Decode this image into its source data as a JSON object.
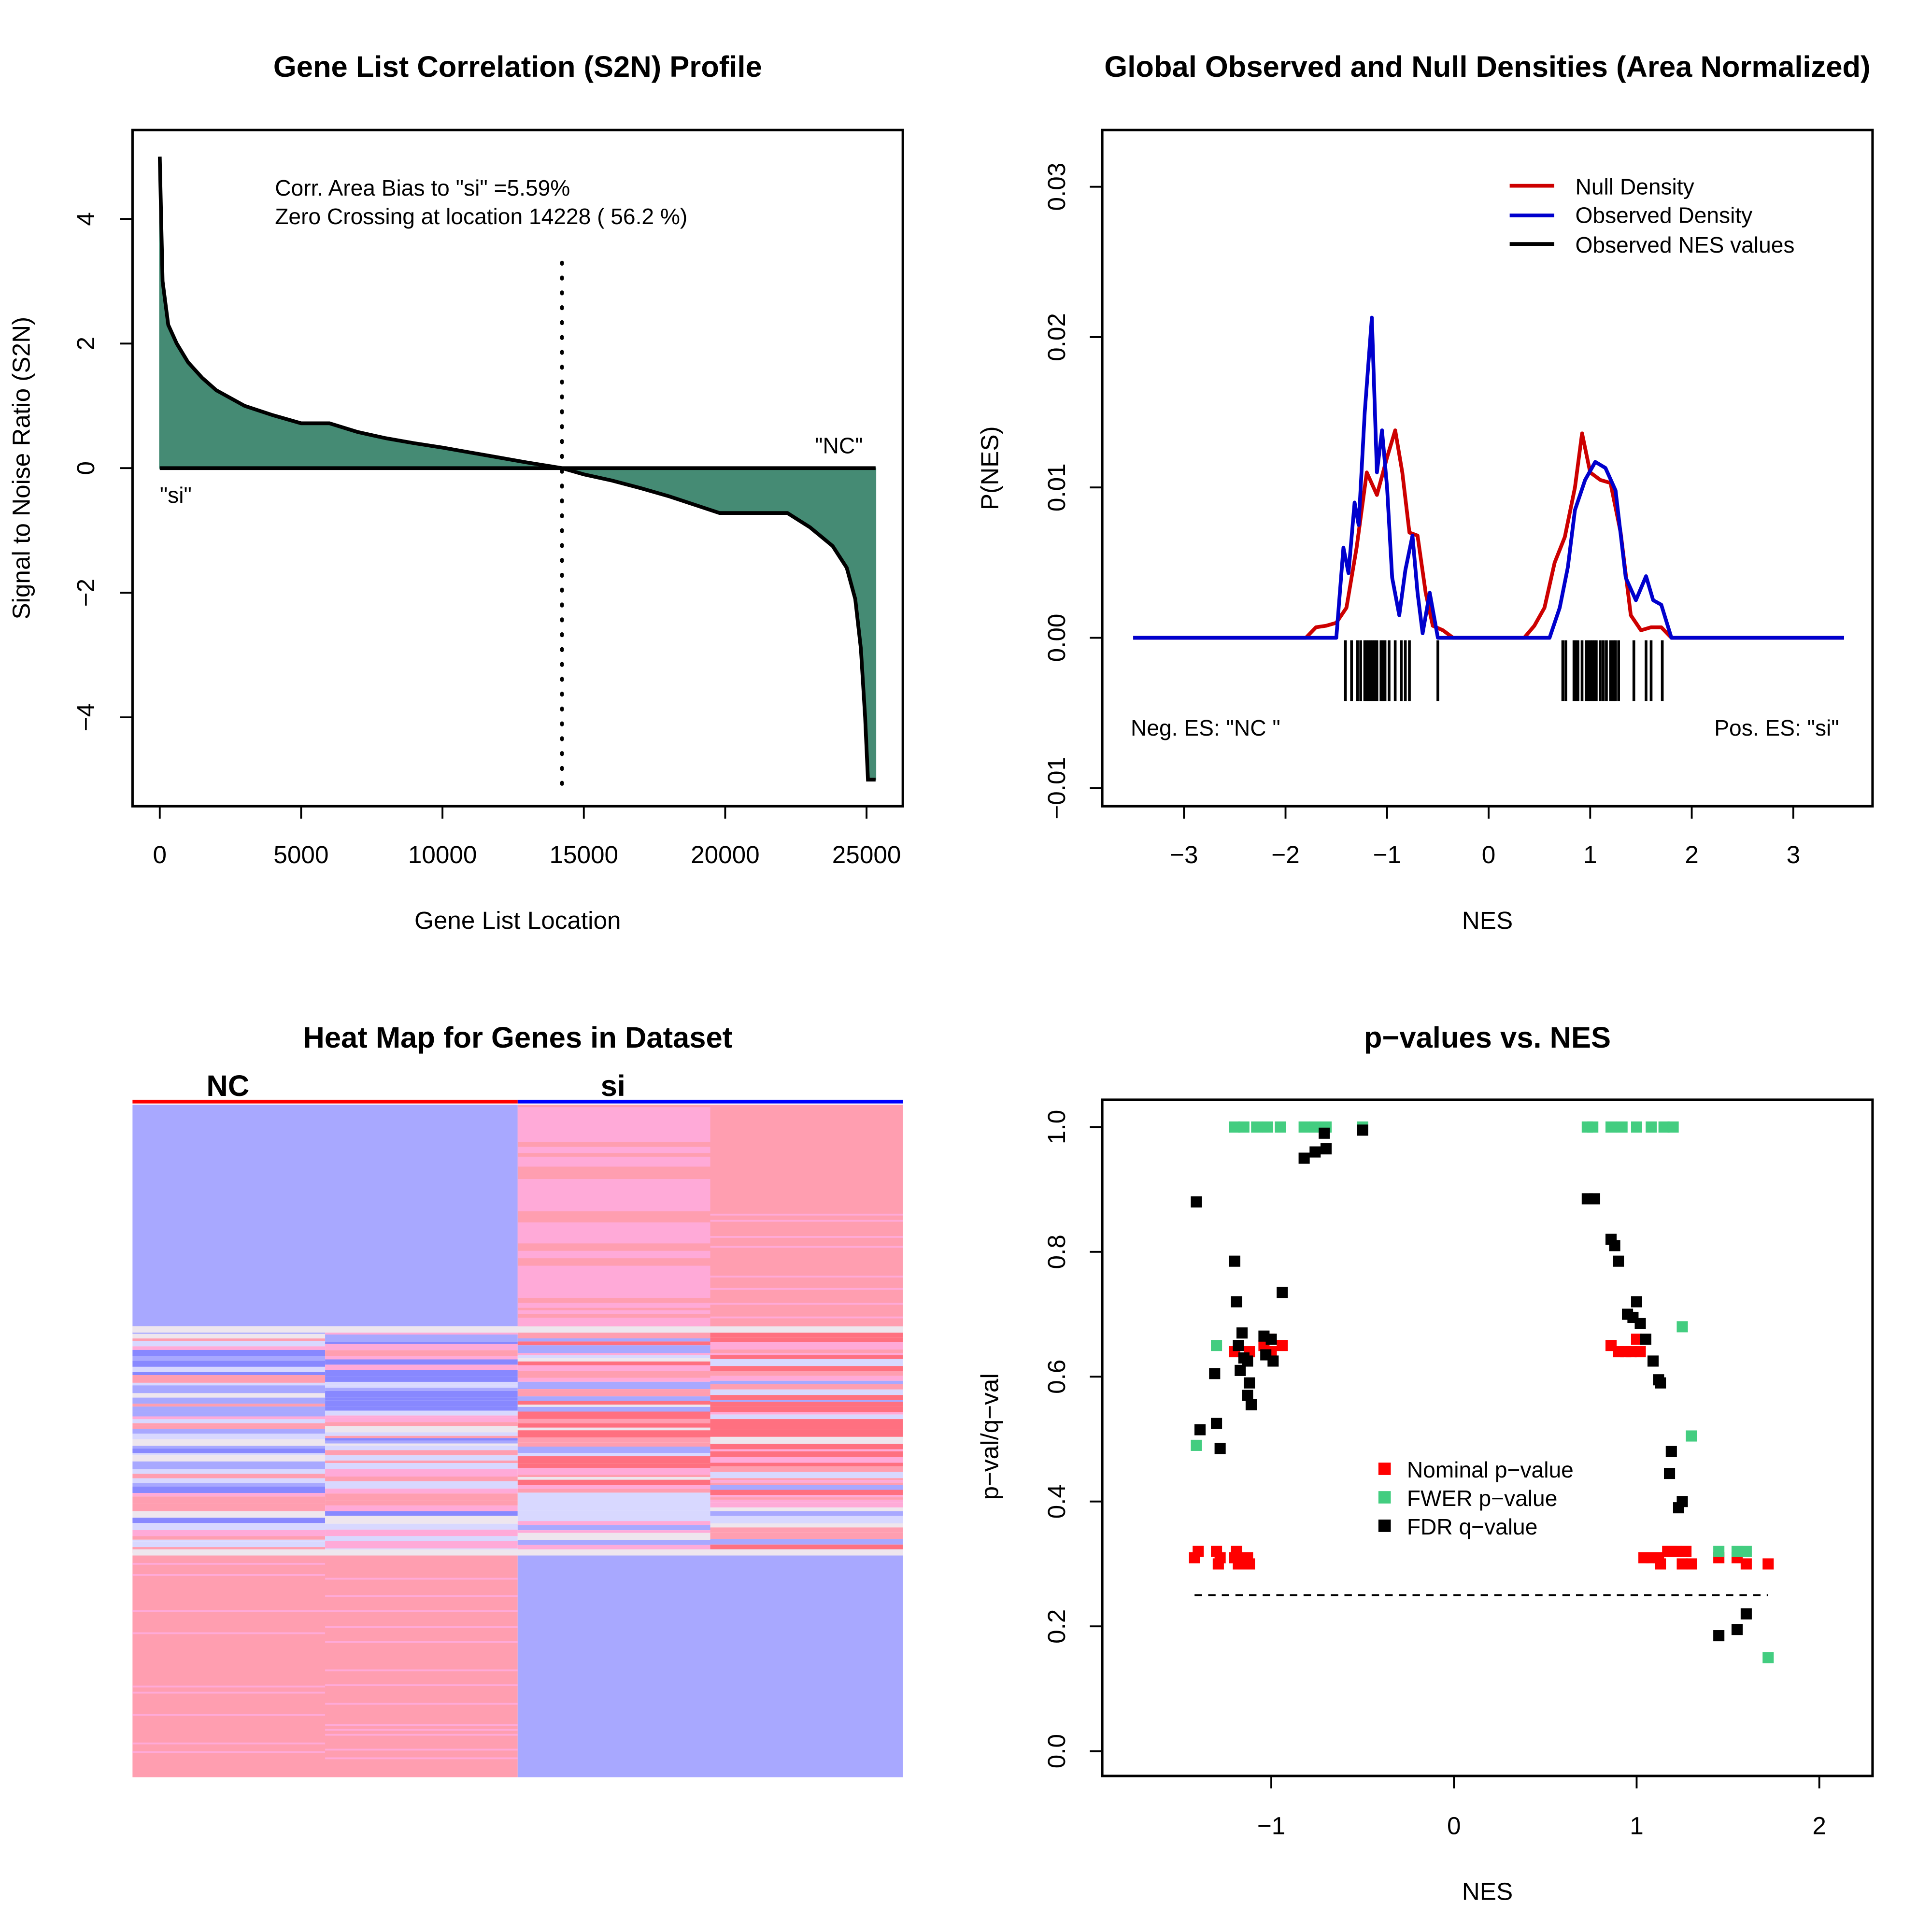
{
  "panels": {
    "s2n": {
      "title": "Gene List Correlation (S2N) Profile",
      "xlabel": "Gene List Location",
      "ylabel": "Signal to Noise Ratio (S2N)",
      "annotation_line1": "Corr. Area Bias to \"si\" =5.59%",
      "annotation_line2": "Zero Crossing at location  14228  ( 56.2  %)",
      "label_left": "\"si\"",
      "label_right": "\"NC\"",
      "fill_color": "#458b74"
    },
    "density": {
      "title": "Global Observed and Null Densities (Area Normalized)",
      "xlabel": "NES",
      "ylabel": "P(NES)",
      "neg_label": "Neg. ES: \"NC \"",
      "pos_label": "Pos. ES: \"si\"",
      "legend": [
        {
          "label": "Null Density",
          "color": "#cd0000"
        },
        {
          "label": "Observed Density",
          "color": "#0000cd"
        },
        {
          "label": "Observed NES values",
          "color": "#000000"
        }
      ]
    },
    "heatmap": {
      "title": "Heat Map for Genes in Dataset",
      "groups": [
        {
          "label": "NC",
          "color": "#ff0000"
        },
        {
          "label": "si",
          "color": "#0000ff"
        }
      ]
    },
    "pvalues": {
      "title": "p−values vs. NES",
      "xlabel": "NES",
      "ylabel": "p−val/q−val",
      "legend": [
        {
          "label": "Nominal p−value",
          "color": "#ff0000"
        },
        {
          "label": "FWER p−value",
          "color": "#43cd80"
        },
        {
          "label": "FDR q−value",
          "color": "#000000"
        }
      ]
    }
  },
  "chart_data": [
    {
      "type": "area",
      "title": "Gene List Correlation (S2N) Profile",
      "xlabel": "Gene List Location",
      "ylabel": "Signal to Noise Ratio (S2N)",
      "xlim": [
        0,
        25320
      ],
      "ylim": [
        -5,
        5
      ],
      "xticks": [
        0,
        5000,
        10000,
        15000,
        20000,
        25000
      ],
      "yticks": [
        -4,
        -2,
        0,
        2,
        4
      ],
      "x": [
        0,
        100,
        300,
        600,
        1000,
        1500,
        2000,
        3000,
        4000,
        5000,
        6000,
        7000,
        8000,
        9000,
        10000,
        11000,
        12000,
        13000,
        14228,
        15000,
        16000,
        17000,
        18000,
        19000,
        19800,
        22200,
        23000,
        23800,
        24300,
        24600,
        24800,
        24950,
        25050,
        25320
      ],
      "y": [
        5.0,
        3.0,
        2.3,
        2.0,
        1.7,
        1.45,
        1.25,
        1.0,
        0.85,
        0.72,
        0.72,
        0.58,
        0.48,
        0.4,
        0.33,
        0.25,
        0.17,
        0.09,
        0.0,
        -0.1,
        -0.2,
        -0.32,
        -0.45,
        -0.6,
        -0.72,
        -0.72,
        -0.95,
        -1.25,
        -1.6,
        -2.1,
        -2.9,
        -4.0,
        -5.0,
        -5.0
      ],
      "zero_crossing": 14228,
      "annotations": [
        "Corr. Area Bias to \"si\" =5.59%",
        "Zero Crossing at location  14228  ( 56.2  %)",
        "\"si\"",
        "\"NC\""
      ]
    },
    {
      "type": "line",
      "title": "Global Observed and Null Densities (Area Normalized)",
      "xlabel": "NES",
      "ylabel": "P(NES)",
      "xlim": [
        -3.5,
        3.5
      ],
      "ylim": [
        -0.01,
        0.033
      ],
      "xticks": [
        -3,
        -2,
        -1,
        0,
        1,
        2,
        3
      ],
      "yticks": [
        -0.01,
        0.0,
        0.01,
        0.02,
        0.03
      ],
      "legend_position": "topright",
      "series": [
        {
          "name": "Null Density",
          "color": "#cd0000",
          "x": [
            -3.5,
            -1.8,
            -1.7,
            -1.6,
            -1.5,
            -1.4,
            -1.3,
            -1.2,
            -1.1,
            -1.0,
            -0.92,
            -0.85,
            -0.78,
            -0.7,
            -0.62,
            -0.55,
            -0.45,
            -0.35,
            0.35,
            0.45,
            0.55,
            0.65,
            0.75,
            0.85,
            0.92,
            1.0,
            1.1,
            1.2,
            1.3,
            1.4,
            1.5,
            1.6,
            1.7,
            1.8,
            3.5
          ],
          "y": [
            0,
            0,
            0.0007,
            0.0008,
            0.001,
            0.002,
            0.006,
            0.011,
            0.0095,
            0.012,
            0.0138,
            0.011,
            0.007,
            0.0068,
            0.003,
            0.0008,
            0.0005,
            0,
            0,
            0.0008,
            0.002,
            0.005,
            0.0067,
            0.01,
            0.0136,
            0.011,
            0.0105,
            0.0103,
            0.007,
            0.0015,
            0.0005,
            0.0007,
            0.0007,
            0,
            0
          ]
        },
        {
          "name": "Observed Density",
          "color": "#0000cd",
          "x": [
            -3.5,
            -1.5,
            -1.43,
            -1.38,
            -1.32,
            -1.28,
            -1.22,
            -1.15,
            -1.1,
            -1.05,
            -1.0,
            -0.95,
            -0.88,
            -0.82,
            -0.75,
            -0.7,
            -0.65,
            -0.58,
            -0.5,
            -0.45,
            0.6,
            0.7,
            0.78,
            0.85,
            0.95,
            1.05,
            1.15,
            1.25,
            1.35,
            1.45,
            1.55,
            1.62,
            1.7,
            1.8,
            3.5
          ],
          "y": [
            0,
            0,
            0.006,
            0.0043,
            0.009,
            0.0075,
            0.015,
            0.0213,
            0.011,
            0.0138,
            0.01,
            0.004,
            0.0015,
            0.0045,
            0.0068,
            0.003,
            0.0003,
            0.003,
            0,
            0,
            0,
            0.002,
            0.0047,
            0.0085,
            0.0105,
            0.0117,
            0.0113,
            0.0098,
            0.004,
            0.0025,
            0.0041,
            0.0025,
            0.0022,
            0,
            0
          ]
        },
        {
          "name": "Observed NES values",
          "color": "#000000",
          "type": "rug",
          "x": [
            -1.41,
            -1.35,
            -1.29,
            -1.26,
            -1.22,
            -1.2,
            -1.18,
            -1.16,
            -1.14,
            -1.12,
            -1.1,
            -1.06,
            -1.04,
            -1.02,
            -0.98,
            -0.92,
            -0.86,
            -0.82,
            -0.78,
            -0.5,
            0.73,
            0.76,
            0.84,
            0.86,
            0.88,
            0.92,
            0.96,
            0.98,
            1.0,
            1.02,
            1.04,
            1.06,
            1.1,
            1.13,
            1.16,
            1.2,
            1.23,
            1.25,
            1.28,
            1.43,
            1.55,
            1.6,
            1.71
          ]
        }
      ],
      "annotations": [
        "Neg. ES: \"NC \"",
        "Pos. ES: \"si\""
      ]
    },
    {
      "type": "heatmap",
      "title": "Heat Map for Genes in Dataset",
      "columns": [
        "NC",
        "NC",
        "si",
        "si"
      ],
      "row_blocks": [
        {
          "rows": "top genes",
          "NC": "low (blue)",
          "si": "high (pink/red)"
        },
        {
          "rows": "middle genes",
          "NC": "mixed",
          "si": "mixed"
        },
        {
          "rows": "bottom genes",
          "NC": "high (pink/red)",
          "si": "low (blue)"
        }
      ],
      "palette": [
        "#8888ff",
        "#a8a8ff",
        "#d8d8ff",
        "#eee6ee",
        "#ffaad8",
        "#ff9eb0",
        "#ff7080"
      ]
    },
    {
      "type": "scatter",
      "title": "p−values vs. NES",
      "xlabel": "NES",
      "ylabel": "p−val/q−val",
      "xlim": [
        -1.92,
        2.3
      ],
      "ylim": [
        -0.04,
        1.04
      ],
      "xticks": [
        -1,
        0,
        1,
        2
      ],
      "yticks": [
        0.0,
        0.2,
        0.4,
        0.6,
        0.8,
        1.0
      ],
      "hline": 0.25,
      "legend_position": "center",
      "series": [
        {
          "name": "Nominal p−value",
          "color": "#ff0000",
          "x": [
            -1.42,
            -1.4,
            -1.3,
            -1.29,
            -1.28,
            -1.2,
            -1.19,
            -1.18,
            -1.17,
            -1.15,
            -1.13,
            -1.12,
            -1.2,
            -1.12,
            -1.04,
            -1.02,
            -1.01,
            -1.0,
            -0.94,
            0.86,
            0.9,
            0.94,
            0.97,
            1.0,
            1.02,
            1.04,
            1.08,
            1.12,
            1.13,
            1.17,
            1.19,
            1.22,
            1.25,
            1.27,
            1.3,
            1.45,
            1.55,
            1.6,
            1.72
          ],
          "y": [
            0.31,
            0.32,
            0.32,
            0.3,
            0.31,
            0.31,
            0.32,
            0.3,
            0.31,
            0.3,
            0.31,
            0.3,
            0.64,
            0.64,
            0.65,
            0.64,
            0.66,
            0.64,
            0.65,
            0.65,
            0.64,
            0.64,
            0.64,
            0.66,
            0.64,
            0.31,
            0.31,
            0.31,
            0.3,
            0.32,
            0.32,
            0.32,
            0.3,
            0.32,
            0.3,
            0.31,
            0.31,
            0.3,
            0.3
          ]
        },
        {
          "name": "FWER p−value",
          "color": "#43cd80",
          "x": [
            -1.41,
            -1.3,
            -1.2,
            -1.15,
            -1.08,
            -1.02,
            -0.95,
            -0.82,
            -0.76,
            -0.7,
            -0.5,
            0.73,
            0.76,
            0.86,
            0.92,
            1.0,
            1.08,
            1.15,
            1.2,
            1.25,
            1.3,
            1.45,
            1.55,
            1.6,
            1.72
          ],
          "y": [
            0.49,
            0.65,
            1.0,
            1.0,
            1.0,
            1.0,
            1.0,
            1.0,
            1.0,
            1.0,
            1.0,
            1.0,
            1.0,
            1.0,
            1.0,
            1.0,
            1.0,
            1.0,
            1.0,
            0.68,
            0.505,
            0.32,
            0.32,
            0.32,
            0.15
          ]
        },
        {
          "name": "FDR q−value",
          "color": "#000000",
          "x": [
            -1.41,
            -1.39,
            -1.31,
            -1.3,
            -1.28,
            -1.2,
            -1.19,
            -1.18,
            -1.17,
            -1.16,
            -1.15,
            -1.13,
            -1.12,
            -1.13,
            -1.11,
            -1.04,
            -1.03,
            -1.0,
            -0.99,
            -0.94,
            -0.82,
            -0.76,
            -0.71,
            -0.7,
            -0.5,
            0.73,
            0.77,
            0.86,
            0.88,
            0.9,
            0.95,
            0.98,
            1.0,
            1.02,
            1.05,
            1.09,
            1.12,
            1.13,
            1.19,
            1.18,
            1.23,
            1.25,
            1.45,
            1.55,
            1.6
          ],
          "y": [
            0.88,
            0.515,
            0.605,
            0.525,
            0.485,
            0.785,
            0.72,
            0.65,
            0.61,
            0.67,
            0.63,
            0.625,
            0.59,
            0.57,
            0.555,
            0.665,
            0.635,
            0.66,
            0.625,
            0.735,
            0.95,
            0.96,
            0.99,
            0.965,
            0.995,
            0.885,
            0.885,
            0.82,
            0.81,
            0.785,
            0.7,
            0.695,
            0.72,
            0.685,
            0.66,
            0.625,
            0.595,
            0.59,
            0.48,
            0.445,
            0.39,
            0.4,
            0.185,
            0.195,
            0.22
          ]
        }
      ]
    }
  ]
}
